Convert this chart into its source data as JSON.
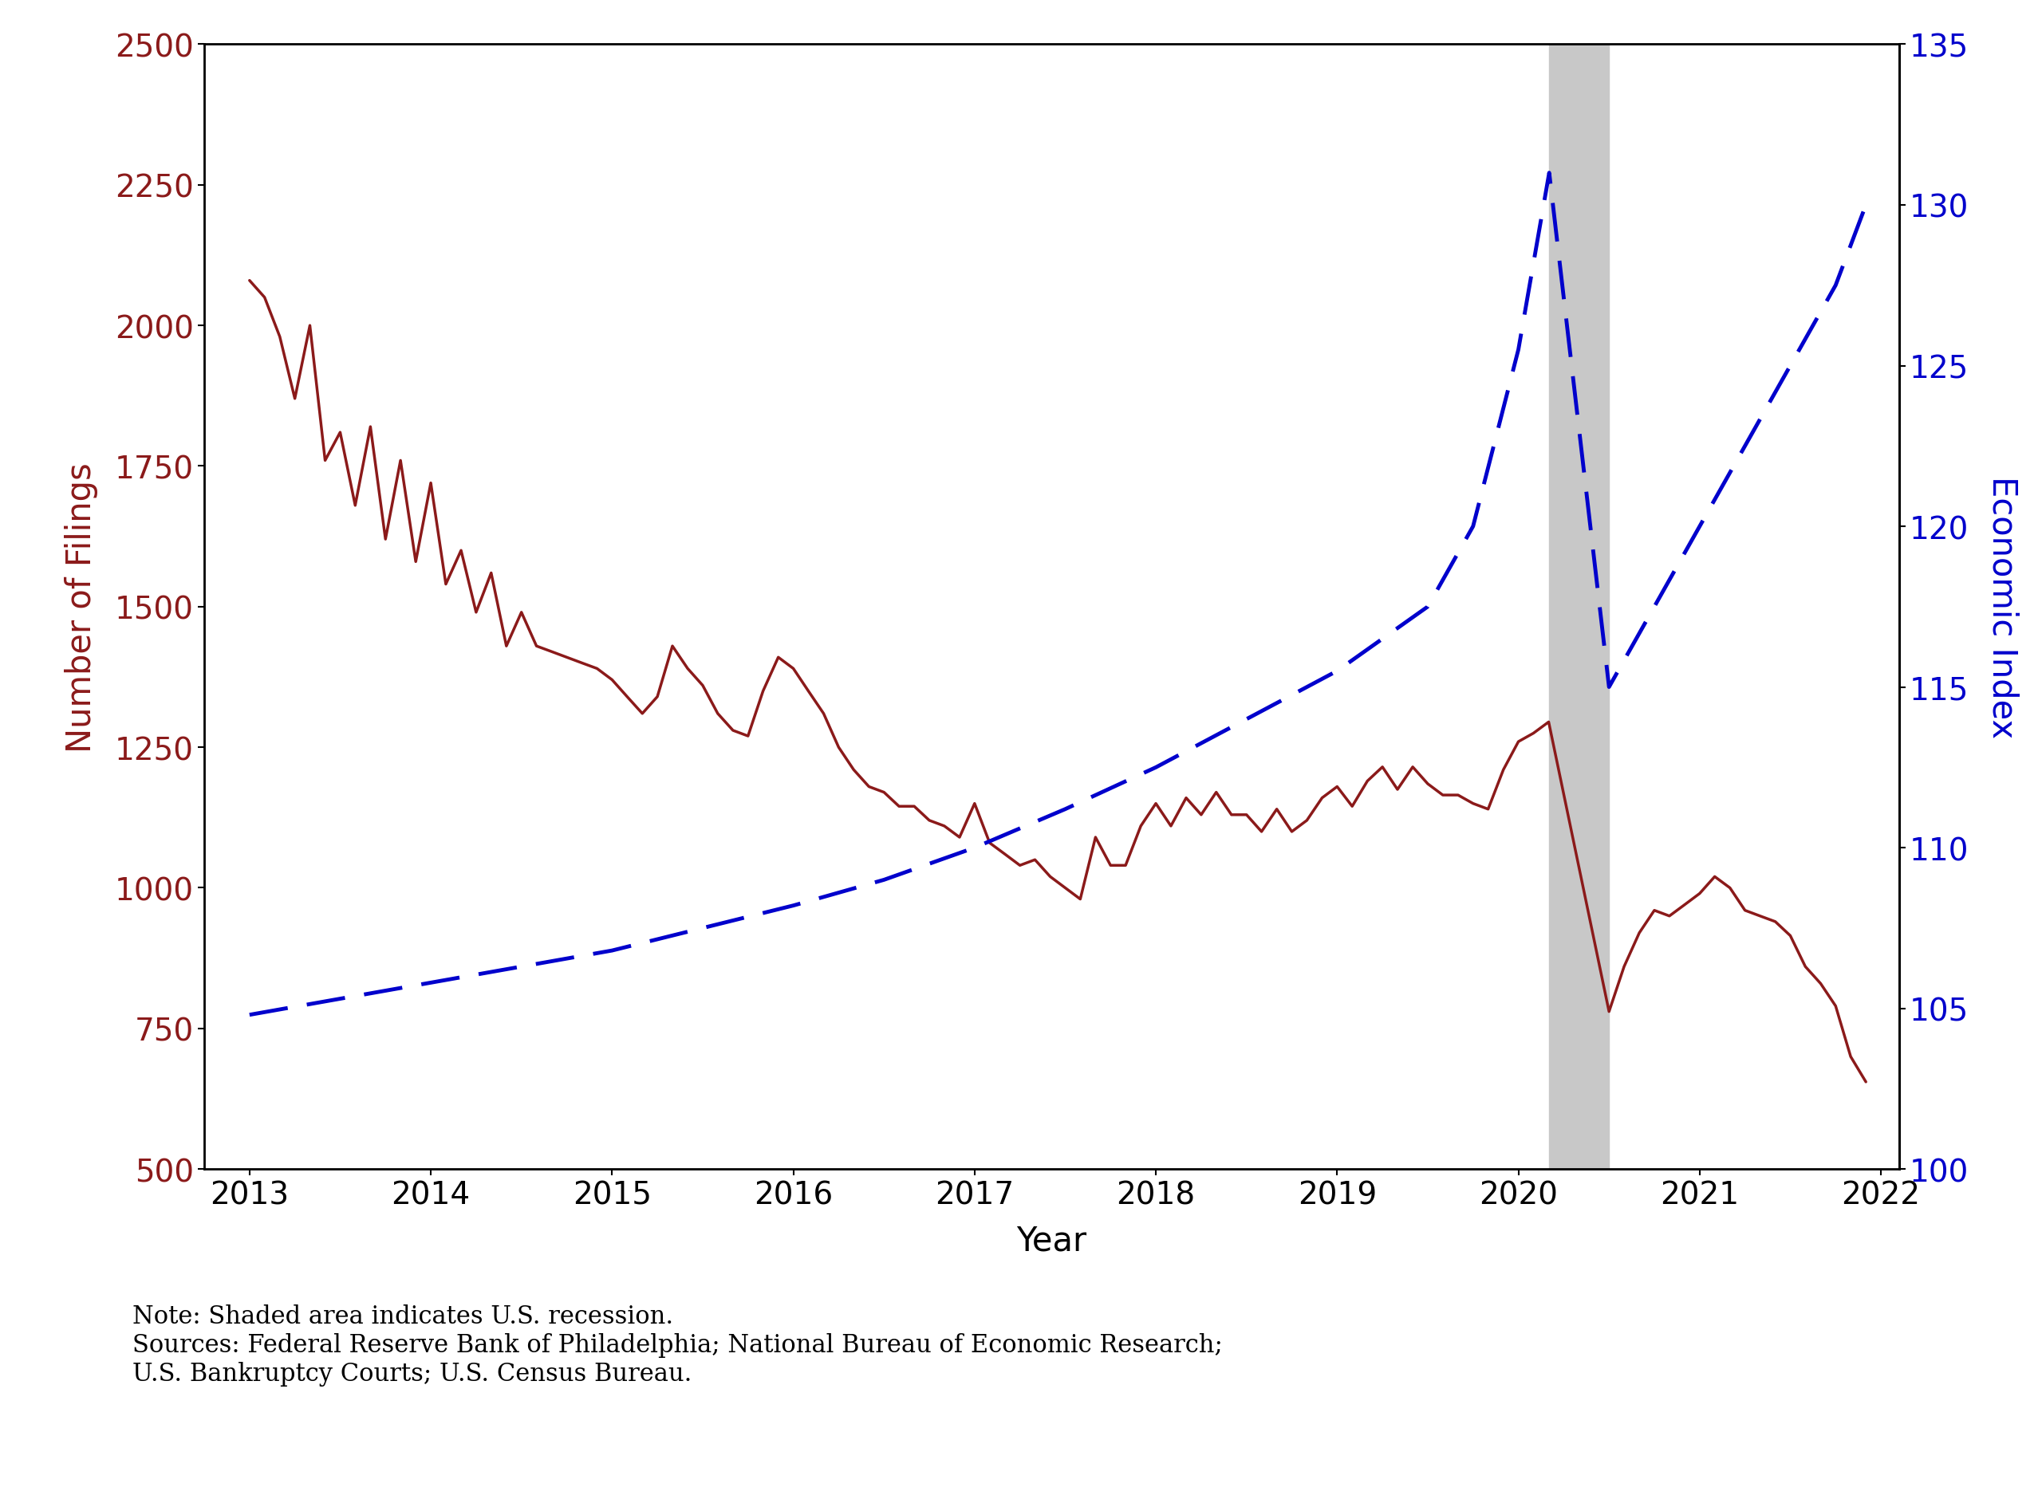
{
  "ylabel_left": "Number of Filings",
  "ylabel_right": "Economic Index",
  "xlabel": "Year",
  "left_color": "#8B1A1A",
  "right_color": "#0000CC",
  "recession_start": 2020.17,
  "recession_end": 2020.5,
  "recession_color": "#C8C8C8",
  "ylim_left": [
    500,
    2500
  ],
  "ylim_right": [
    100,
    135
  ],
  "yticks_left": [
    500,
    750,
    1000,
    1250,
    1500,
    1750,
    2000,
    2250,
    2500
  ],
  "yticks_right": [
    100,
    105,
    110,
    115,
    120,
    125,
    130,
    135
  ],
  "xlim": [
    2012.75,
    2022.1
  ],
  "xticks": [
    2013,
    2014,
    2015,
    2016,
    2017,
    2018,
    2019,
    2020,
    2021,
    2022
  ],
  "note_text": "Note: Shaded area indicates U.S. recession.\nSources: Federal Reserve Bank of Philadelphia; National Bureau of Economic Research;\nU.S. Bankruptcy Courts; U.S. Census Bureau.",
  "bankruptcy_x": [
    2013.0,
    2013.083,
    2013.167,
    2013.25,
    2013.333,
    2013.417,
    2013.5,
    2013.583,
    2013.667,
    2013.75,
    2013.833,
    2013.917,
    2014.0,
    2014.083,
    2014.167,
    2014.25,
    2014.333,
    2014.417,
    2014.5,
    2014.583,
    2014.667,
    2014.75,
    2014.833,
    2014.917,
    2015.0,
    2015.083,
    2015.167,
    2015.25,
    2015.333,
    2015.417,
    2015.5,
    2015.583,
    2015.667,
    2015.75,
    2015.833,
    2015.917,
    2016.0,
    2016.083,
    2016.167,
    2016.25,
    2016.333,
    2016.417,
    2016.5,
    2016.583,
    2016.667,
    2016.75,
    2016.833,
    2016.917,
    2017.0,
    2017.083,
    2017.167,
    2017.25,
    2017.333,
    2017.417,
    2017.5,
    2017.583,
    2017.667,
    2017.75,
    2017.833,
    2017.917,
    2018.0,
    2018.083,
    2018.167,
    2018.25,
    2018.333,
    2018.417,
    2018.5,
    2018.583,
    2018.667,
    2018.75,
    2018.833,
    2018.917,
    2019.0,
    2019.083,
    2019.167,
    2019.25,
    2019.333,
    2019.417,
    2019.5,
    2019.583,
    2019.667,
    2019.75,
    2019.833,
    2019.917,
    2020.0,
    2020.083,
    2020.167,
    2020.5,
    2020.583,
    2020.667,
    2020.75,
    2020.833,
    2020.917,
    2021.0,
    2021.083,
    2021.167,
    2021.25,
    2021.333,
    2021.417,
    2021.5,
    2021.583,
    2021.667,
    2021.75,
    2021.833,
    2021.917
  ],
  "bankruptcy_y": [
    2080,
    2050,
    1980,
    1870,
    2000,
    1760,
    1810,
    1680,
    1820,
    1620,
    1760,
    1580,
    1720,
    1540,
    1600,
    1490,
    1560,
    1430,
    1490,
    1430,
    1420,
    1410,
    1400,
    1390,
    1370,
    1340,
    1310,
    1340,
    1430,
    1390,
    1360,
    1310,
    1280,
    1270,
    1350,
    1410,
    1390,
    1350,
    1310,
    1250,
    1210,
    1180,
    1170,
    1145,
    1145,
    1120,
    1110,
    1090,
    1150,
    1080,
    1060,
    1040,
    1050,
    1020,
    1000,
    980,
    1090,
    1040,
    1040,
    1110,
    1150,
    1110,
    1160,
    1130,
    1170,
    1130,
    1130,
    1100,
    1140,
    1100,
    1120,
    1160,
    1180,
    1145,
    1190,
    1215,
    1175,
    1215,
    1185,
    1165,
    1165,
    1150,
    1140,
    1210,
    1260,
    1275,
    1295,
    780,
    860,
    920,
    960,
    950,
    970,
    990,
    1020,
    1000,
    960,
    950,
    940,
    915,
    860,
    830,
    790,
    700,
    655
  ],
  "econ_x": [
    2013.0,
    2013.5,
    2014.0,
    2014.5,
    2015.0,
    2015.5,
    2016.0,
    2016.5,
    2017.0,
    2017.5,
    2018.0,
    2018.5,
    2019.0,
    2019.5,
    2019.75,
    2020.0,
    2020.17,
    2020.5,
    2020.75,
    2021.0,
    2021.25,
    2021.5,
    2021.75,
    2021.917
  ],
  "econ_y": [
    104.8,
    105.3,
    105.8,
    106.3,
    106.8,
    107.5,
    108.2,
    109.0,
    110.0,
    111.2,
    112.5,
    114.0,
    115.5,
    117.5,
    120.0,
    125.5,
    131.0,
    115.0,
    117.5,
    120.0,
    122.5,
    125.0,
    127.5,
    130.0
  ]
}
